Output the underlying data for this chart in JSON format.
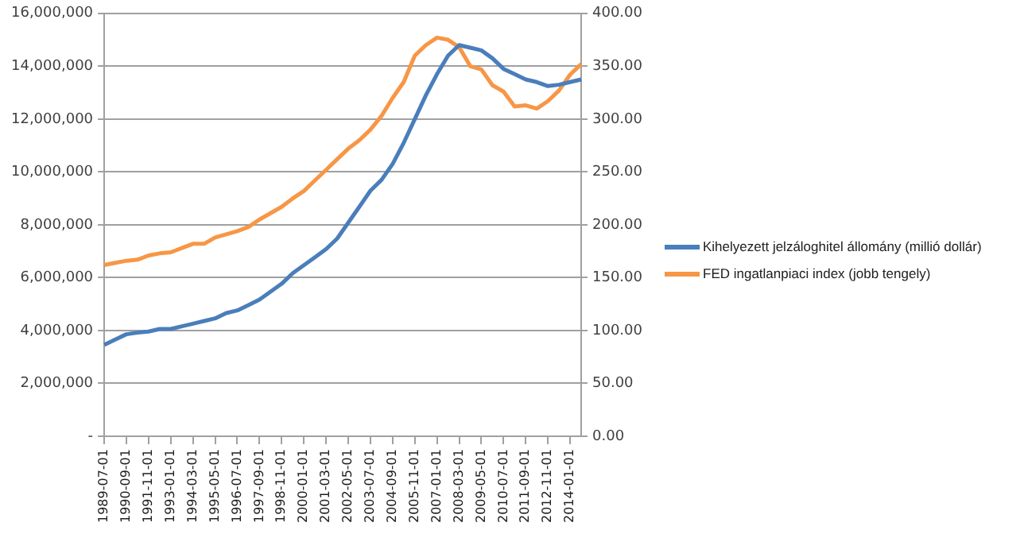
{
  "chart_data": {
    "type": "line",
    "categories": [
      "1989-07-01",
      null,
      "1990-09-01",
      null,
      "1991-11-01",
      null,
      "1993-01-01",
      null,
      "1994-03-01",
      null,
      "1995-05-01",
      null,
      "1996-07-01",
      null,
      "1997-09-01",
      null,
      "1998-11-01",
      null,
      "2000-01-01",
      null,
      "2001-03-01",
      null,
      "2002-05-01",
      null,
      "2003-07-01",
      null,
      "2004-09-01",
      null,
      "2005-11-01",
      null,
      "2007-01-01",
      null,
      "2008-03-01",
      null,
      "2009-05-01",
      null,
      "2010-07-01",
      null,
      "2011-09-01",
      null,
      "2012-11-01",
      null,
      "2014-01-01",
      null
    ],
    "series": [
      {
        "name": "Kihelyezett jelzáloghitel állomány  (millió dollár)",
        "color": "#4a7ebb",
        "values": [
          3460000,
          3660000,
          3860000,
          3920000,
          3960000,
          4060000,
          4060000,
          4160000,
          4260000,
          4360000,
          4460000,
          4660000,
          4760000,
          4960000,
          5170000,
          5470000,
          5770000,
          6170000,
          6470000,
          6770000,
          7080000,
          7480000,
          8080000,
          8680000,
          9290000,
          9700000,
          10300000,
          11100000,
          12000000,
          12900000,
          13700000,
          14400000,
          14800000,
          14700000,
          14600000,
          14300000,
          13900000,
          13700000,
          13500000,
          13400000,
          13250000,
          13300000,
          13400000,
          13500000
        ]
      },
      {
        "name": "FED ingatlanpiaci  index (jobb tengely)",
        "color": "#f79646",
        "axis": "y2",
        "values": [
          162,
          164,
          166,
          167,
          171,
          173,
          174,
          178,
          182,
          182,
          188,
          191,
          194,
          198,
          205,
          211,
          217,
          225,
          232,
          242,
          252,
          262,
          272,
          280,
          290,
          303,
          320,
          335,
          360,
          370,
          377,
          375,
          368,
          350,
          347,
          332,
          326,
          312,
          313,
          310,
          317,
          327,
          342,
          352
        ]
      }
    ],
    "ylim": [
      0,
      16000000
    ],
    "yticks": [
      {
        "value": 0,
        "label": "-"
      },
      {
        "value": 2000000,
        "label": "2,000,000"
      },
      {
        "value": 4000000,
        "label": "4,000,000"
      },
      {
        "value": 6000000,
        "label": "6,000,000"
      },
      {
        "value": 8000000,
        "label": "8,000,000"
      },
      {
        "value": 10000000,
        "label": "10,000,000"
      },
      {
        "value": 12000000,
        "label": "12,000,000"
      },
      {
        "value": 14000000,
        "label": "14,000,000"
      },
      {
        "value": 16000000,
        "label": "16,000,000"
      }
    ],
    "y2lim": [
      0,
      400
    ],
    "y2ticks": [
      {
        "value": 0,
        "label": "0.00"
      },
      {
        "value": 50,
        "label": "50.00"
      },
      {
        "value": 100,
        "label": "100.00"
      },
      {
        "value": 150,
        "label": "150.00"
      },
      {
        "value": 200,
        "label": "200.00"
      },
      {
        "value": 250,
        "label": "250.00"
      },
      {
        "value": 300,
        "label": "300.00"
      },
      {
        "value": 350,
        "label": "350.00"
      },
      {
        "value": 400,
        "label": "400.00"
      }
    ],
    "grid": "y",
    "legend": "right",
    "marker": "none",
    "line_style": "solid"
  }
}
